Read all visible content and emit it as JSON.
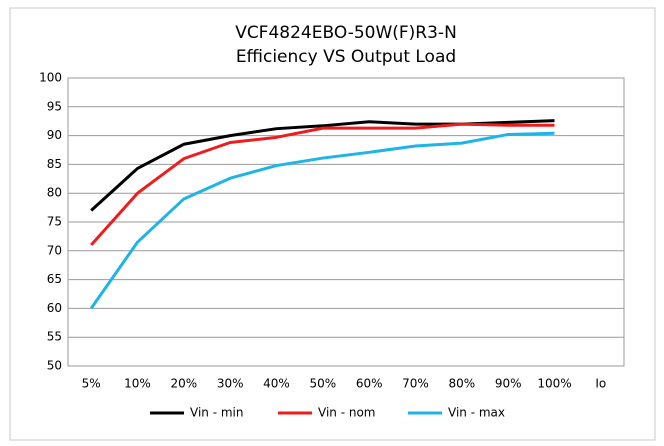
{
  "chart_data": {
    "type": "line",
    "title": "VCF4824EBO-50W(F)R3-N",
    "subtitle": "Efficiency VS Output Load",
    "categories": [
      "5%",
      "10%",
      "20%",
      "30%",
      "40%",
      "50%",
      "60%",
      "70%",
      "80%",
      "90%",
      "100%",
      "Io"
    ],
    "series": [
      {
        "name": "Vin - min",
        "color": "#000000",
        "values": [
          77,
          84.3,
          88.5,
          90,
          91.2,
          91.7,
          92.4,
          92,
          92,
          92.3,
          92.6,
          null
        ]
      },
      {
        "name": "Vin - nom",
        "color": "#ee1c1c",
        "values": [
          71,
          80,
          86,
          88.8,
          89.7,
          91.3,
          91.3,
          91.3,
          92,
          91.8,
          91.8,
          null
        ]
      },
      {
        "name": "Vin - max",
        "color": "#1eb4e8",
        "values": [
          60,
          71.5,
          79,
          82.6,
          84.8,
          86.1,
          87.1,
          88.2,
          88.7,
          90.2,
          90.4,
          null
        ]
      }
    ],
    "ylim": [
      50,
      100
    ],
    "yticks": [
      50,
      55,
      60,
      65,
      70,
      75,
      80,
      85,
      90,
      95,
      100
    ],
    "grid": true,
    "legend": "bottom"
  }
}
